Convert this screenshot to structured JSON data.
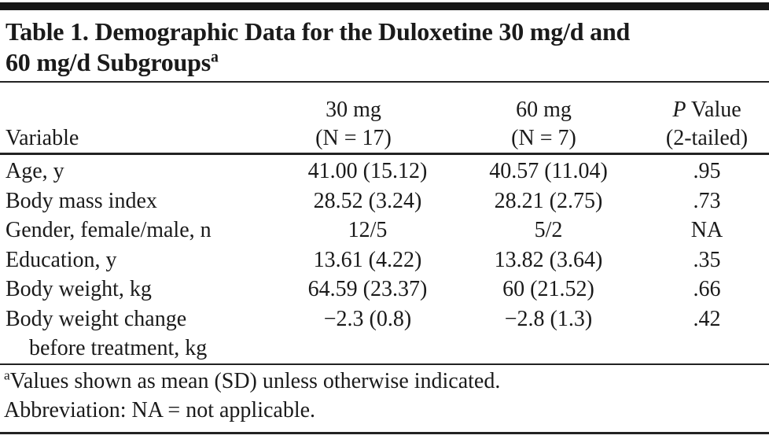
{
  "colors": {
    "background": "#ffffff",
    "text": "#1a1a1a",
    "rule": "#222222",
    "top_bar": "#171717"
  },
  "table": {
    "title": {
      "line1": "Table 1. Demographic Data for the Duloxetine 30 mg/d and",
      "line2": "60 mg/d Subgroups",
      "superscript": "a"
    },
    "header": {
      "variable": "Variable",
      "col30_line1": "30 mg",
      "col30_line2": "(N = 17)",
      "col60_line1": "60 mg",
      "col60_line2": "(N = 7)",
      "p_italic": "P",
      "p_rest": " Value",
      "p_line2": "(2-tailed)"
    },
    "rows": [
      {
        "label": "Age, y",
        "mg30": "41.00 (15.12)",
        "mg60": "40.57 (11.04)",
        "p_value": ".95"
      },
      {
        "label": "Body mass index",
        "mg30": "28.52 (3.24)",
        "mg60": "28.21 (2.75)",
        "p_value": ".73"
      },
      {
        "label": "Gender, female/male, n",
        "mg30": "12/5",
        "mg60": "5/2",
        "p_value": "NA"
      },
      {
        "label": "Education, y",
        "mg30": "13.61 (4.22)",
        "mg60": "13.82 (3.64)",
        "p_value": ".35"
      },
      {
        "label": "Body weight, kg",
        "mg30": "64.59 (23.37)",
        "mg60": "60 (21.52)",
        "p_value": ".66"
      },
      {
        "label": "Body weight change",
        "label_line2": "before treatment, kg",
        "mg30": "−2.3 (0.8)",
        "mg60": "−2.8 (1.3)",
        "p_value": ".42"
      }
    ],
    "footnotes": {
      "note1_superscript": "a",
      "note1_text": "Values shown as mean (SD) unless otherwise indicated.",
      "note2_text": "Abbreviation: NA = not applicable."
    }
  }
}
